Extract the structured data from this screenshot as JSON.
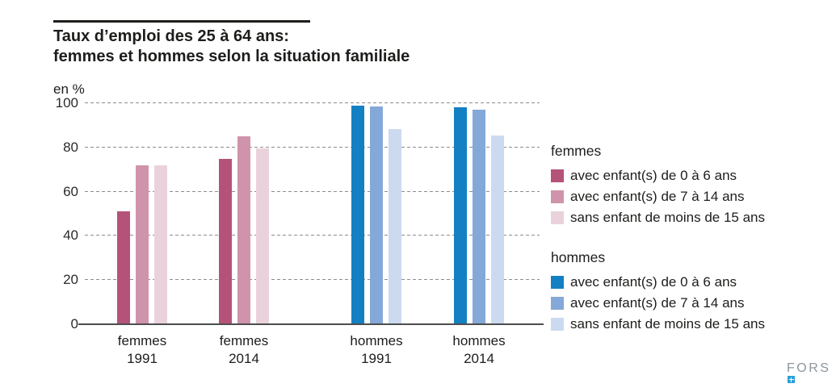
{
  "header": {
    "title_line1": "Taux d’emploi des 25 à 64 ans:",
    "title_line2": "femmes et hommes selon la situation familiale",
    "unit_label": "en %"
  },
  "chart_data": {
    "type": "bar",
    "title": "Taux d’emploi des 25 à 64 ans: femmes et hommes selon la situation familiale",
    "ylabel": "en %",
    "ylim": [
      0,
      100
    ],
    "yticks": [
      0,
      20,
      40,
      60,
      80,
      100
    ],
    "grid": "horizontal-dashed",
    "legend_position": "right",
    "categories": [
      "femmes 1991",
      "femmes 2014",
      "hommes 1991",
      "hommes 2014"
    ],
    "x_tick_lines": [
      [
        "femmes",
        "1991"
      ],
      [
        "femmes",
        "2014"
      ],
      [
        "hommes",
        "1991"
      ],
      [
        "hommes",
        "2014"
      ]
    ],
    "series": [
      {
        "name": "avec enfant(s) de 0 à 6 ans",
        "values": [
          51,
          75,
          99,
          98
        ]
      },
      {
        "name": "avec enfant(s) de 7 à 14 ans",
        "values": [
          72,
          85,
          98.5,
          97
        ]
      },
      {
        "name": "sans enfant de moins de 15 ans",
        "values": [
          72,
          79.5,
          88.5,
          85.5
        ]
      }
    ],
    "colors": {
      "femmes": [
        "#b5527a",
        "#cf93ac",
        "#ead2dc"
      ],
      "hommes": [
        "#1380c4",
        "#84a9d8",
        "#ccdaf0"
      ]
    }
  },
  "legend": {
    "groups": [
      {
        "title": "femmes",
        "items": [
          {
            "label": "avec enfant(s) de 0 à 6 ans",
            "color": "#b5527a"
          },
          {
            "label": "avec enfant(s) de 7 à 14 ans",
            "color": "#cf93ac"
          },
          {
            "label": "sans enfant de moins de 15 ans",
            "color": "#ead2dc"
          }
        ]
      },
      {
        "title": "hommes",
        "items": [
          {
            "label": "avec enfant(s) de 0 à 6 ans",
            "color": "#1380c4"
          },
          {
            "label": "avec enfant(s) de 7 à 14 ans",
            "color": "#84a9d8"
          },
          {
            "label": "sans enfant de moins de 15 ans",
            "color": "#ccdaf0"
          }
        ]
      }
    ]
  },
  "footer": {
    "logo_text": "FORS"
  }
}
